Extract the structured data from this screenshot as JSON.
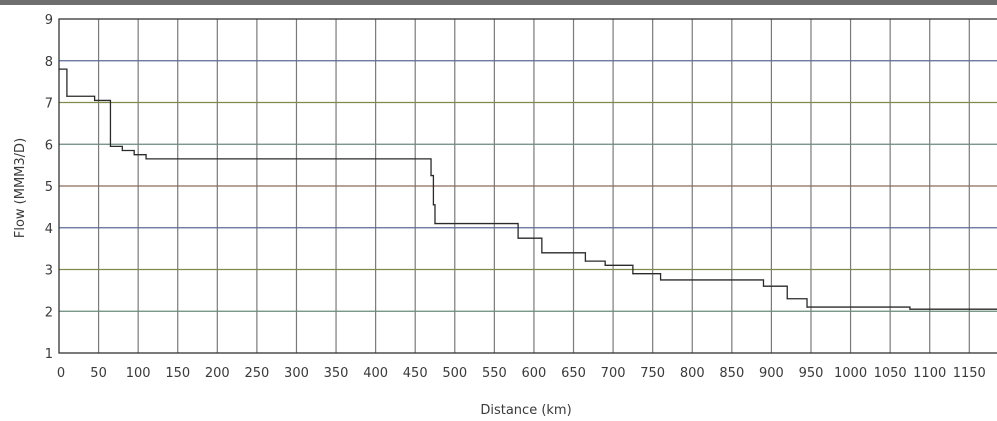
{
  "chart_data": {
    "type": "line",
    "xlabel": "Distance (km)",
    "ylabel": "Flow (MMM3/D)",
    "xlim": [
      0,
      1185
    ],
    "ylim": [
      1,
      9
    ],
    "x_ticks": [
      0,
      50,
      100,
      150,
      200,
      250,
      300,
      350,
      400,
      450,
      500,
      550,
      600,
      650,
      700,
      750,
      800,
      850,
      900,
      950,
      1000,
      1050,
      1100,
      1150
    ],
    "x_tick_labels": [
      "0",
      "50",
      "100",
      "150",
      "200",
      "250",
      "300",
      "350",
      "400",
      "450",
      "500",
      "550",
      "600",
      "650",
      "700",
      "750",
      "800",
      "850",
      "900",
      "950",
      "1000",
      "1050",
      "1100",
      "1150"
    ],
    "y_ticks": [
      1,
      2,
      3,
      4,
      5,
      6,
      7,
      8,
      9
    ],
    "y_tick_labels": [
      "1",
      "2",
      "3",
      "4",
      "5",
      "6",
      "7",
      "8",
      "9"
    ],
    "grid": true,
    "series": [
      {
        "step": "post",
        "x": [
          0,
          10,
          45,
          65,
          80,
          95,
          110,
          470,
          473,
          475,
          580,
          610,
          665,
          690,
          725,
          760,
          890,
          920,
          945,
          1075,
          1185
        ],
        "y": [
          7.8,
          7.15,
          7.05,
          5.95,
          5.85,
          5.75,
          5.65,
          5.25,
          4.55,
          4.1,
          3.75,
          3.4,
          3.2,
          3.1,
          2.9,
          2.75,
          2.6,
          2.3,
          2.1,
          2.05,
          2.05
        ]
      }
    ],
    "colors": {
      "vertical_grid": "#7a7a7a",
      "horizontal_grid": [
        "#8a6a5a",
        "#6a8a7a",
        "#7f8a4a",
        "#5a6a9a"
      ],
      "series_line": "#2a2a2a",
      "frame": "#333333"
    }
  }
}
